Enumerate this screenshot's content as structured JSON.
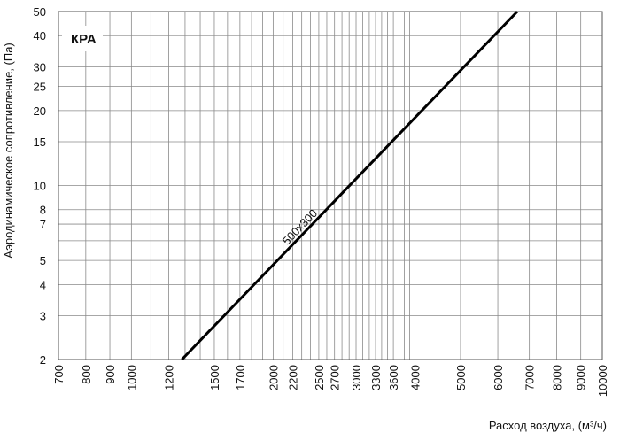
{
  "chart_data": {
    "type": "line",
    "title": "КРА",
    "xlabel": "Расход воздуха, (м³/ч)",
    "ylabel": "Аэродинамическое сопротивление, (Па)",
    "x_scale": "log",
    "y_scale": "log",
    "xlim": [
      700,
      10000
    ],
    "ylim": [
      2,
      50
    ],
    "grid": true,
    "x_ticks": [
      700,
      800,
      900,
      1000,
      1200,
      1500,
      1700,
      2000,
      2200,
      2500,
      2700,
      3000,
      3300,
      3600,
      4000,
      5000,
      6000,
      7000,
      8000,
      9000,
      10000
    ],
    "x_ticks_unlabeled": [
      1100,
      1300,
      1400,
      1600,
      1800,
      1900,
      2100,
      2300,
      2400,
      2600,
      2800,
      2900,
      3100,
      3200,
      3400,
      3500,
      3700,
      3800,
      3900
    ],
    "y_ticks": [
      2,
      3,
      4,
      5,
      7,
      8,
      10,
      15,
      20,
      25,
      30,
      40,
      50
    ],
    "y_ticks_unlabeled": [
      6
    ],
    "series": [
      {
        "name": "500x300",
        "x": [
          1280,
          6600
        ],
        "y": [
          2,
          50
        ]
      }
    ]
  }
}
